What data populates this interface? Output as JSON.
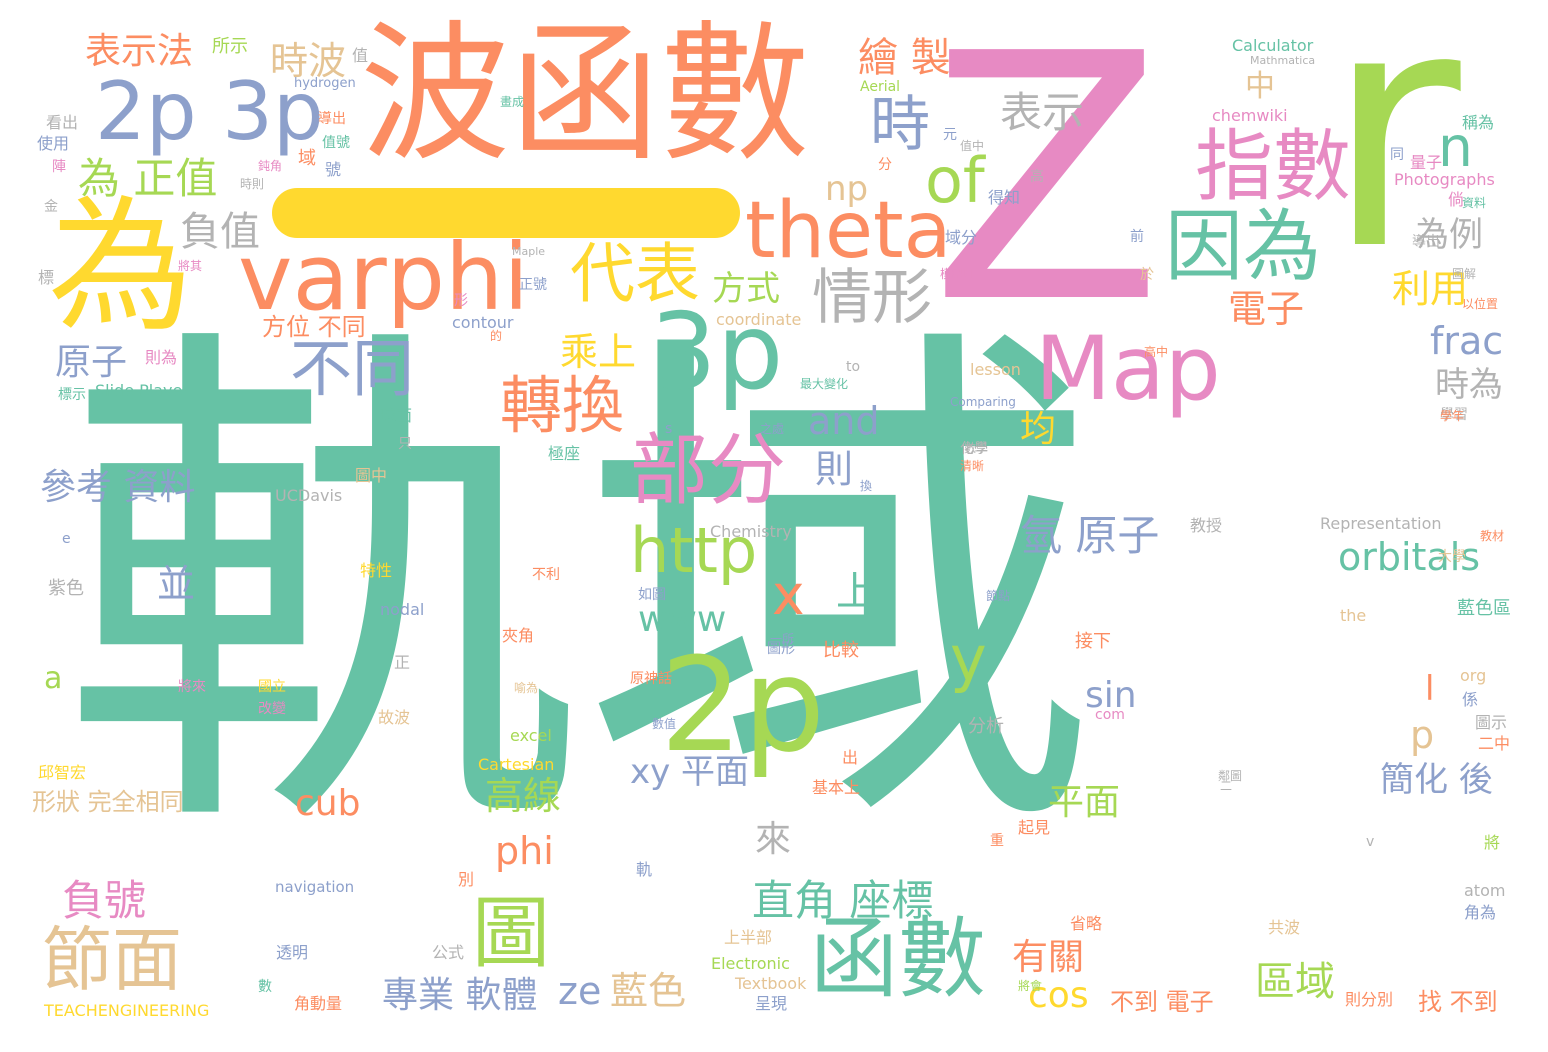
{
  "palette": {
    "green": "#66c2a5",
    "orange": "#fc8d62",
    "blue": "#8da0cb",
    "pink": "#e78ac3",
    "lime": "#a6d854",
    "yellow": "#ffd92f",
    "tan": "#e5c494",
    "gray": "#b3b3b3"
  },
  "bar_color": "#ffd92f",
  "words": [
    {
      "text": "軌域",
      "color": "green"
    },
    {
      "text": "Z",
      "color": "pink"
    },
    {
      "text": "r",
      "color": "lime"
    },
    {
      "text": "波函數",
      "color": "orange"
    },
    {
      "text": "為",
      "color": "yellow"
    },
    {
      "text": "varphi",
      "color": "orange"
    },
    {
      "text": "3p",
      "color": "green"
    },
    {
      "text": "2p",
      "color": "lime"
    },
    {
      "text": "2p 3p",
      "color": "blue"
    },
    {
      "text": "theta",
      "color": "orange"
    },
    {
      "text": "函數",
      "color": "green"
    },
    {
      "text": "Map",
      "color": "pink"
    },
    {
      "text": "指數",
      "color": "pink"
    },
    {
      "text": "因為",
      "color": "green"
    },
    {
      "text": "部分",
      "color": "pink"
    },
    {
      "text": "代表",
      "color": "yellow"
    },
    {
      "text": "of",
      "color": "lime"
    },
    {
      "text": "時",
      "color": "blue"
    },
    {
      "text": "情形",
      "color": "gray"
    },
    {
      "text": "轉換",
      "color": "orange"
    },
    {
      "text": "不同",
      "color": "blue"
    },
    {
      "text": "節面",
      "color": "tan"
    },
    {
      "text": "圖",
      "color": "lime"
    },
    {
      "text": "http",
      "color": "lime"
    },
    {
      "text": "x",
      "color": "orange"
    },
    {
      "text": "y",
      "color": "lime"
    },
    {
      "text": "n",
      "color": "green"
    },
    {
      "text": "為 正值",
      "color": "lime"
    },
    {
      "text": "表示",
      "color": "gray"
    },
    {
      "text": "負值",
      "color": "gray"
    },
    {
      "text": "繪 製",
      "color": "orange"
    },
    {
      "text": "時波",
      "color": "tan"
    },
    {
      "text": "表示法",
      "color": "orange"
    },
    {
      "text": "orbitals",
      "color": "green"
    },
    {
      "text": "直角 座標",
      "color": "green"
    },
    {
      "text": "氫 原子",
      "color": "blue"
    },
    {
      "text": "frac",
      "color": "blue"
    },
    {
      "text": "為例",
      "color": "gray"
    },
    {
      "text": "利用",
      "color": "yellow"
    },
    {
      "text": "電子",
      "color": "orange"
    },
    {
      "text": "時為",
      "color": "gray"
    },
    {
      "text": "and",
      "color": "blue"
    },
    {
      "text": "乘上",
      "color": "yellow"
    },
    {
      "text": "方式",
      "color": "lime"
    },
    {
      "text": "原子",
      "color": "blue"
    },
    {
      "text": "參考 資料",
      "color": "blue"
    },
    {
      "text": "負號",
      "color": "pink"
    },
    {
      "text": "專業 軟體",
      "color": "blue"
    },
    {
      "text": "ze",
      "color": "blue"
    },
    {
      "text": "藍色",
      "color": "tan"
    },
    {
      "text": "區域",
      "color": "lime"
    },
    {
      "text": "有關",
      "color": "orange"
    },
    {
      "text": "cos",
      "color": "yellow"
    },
    {
      "text": "簡化 後",
      "color": "blue"
    },
    {
      "text": "平面",
      "color": "lime"
    },
    {
      "text": "xy 平面",
      "color": "blue"
    },
    {
      "text": "高線",
      "color": "lime"
    },
    {
      "text": "cub",
      "color": "orange"
    },
    {
      "text": "phi",
      "color": "orange"
    },
    {
      "text": "www",
      "color": "green"
    },
    {
      "text": "sin",
      "color": "blue"
    },
    {
      "text": "np",
      "color": "tan"
    },
    {
      "text": "上",
      "color": "green"
    },
    {
      "text": "並",
      "color": "blue"
    },
    {
      "text": "則",
      "color": "blue"
    },
    {
      "text": "均",
      "color": "yellow"
    },
    {
      "text": "來",
      "color": "gray"
    },
    {
      "text": "p",
      "color": "tan"
    },
    {
      "text": "l",
      "color": "orange"
    },
    {
      "text": "a",
      "color": "lime"
    },
    {
      "text": "中",
      "color": "tan"
    },
    {
      "text": "方位 不同",
      "color": "orange"
    },
    {
      "text": "形狀 完全相同",
      "color": "tan"
    },
    {
      "text": "不到 電子",
      "color": "orange"
    },
    {
      "text": "找 不到",
      "color": "orange"
    },
    {
      "text": "Calculator",
      "color": "green"
    },
    {
      "text": "chemwiki",
      "color": "pink"
    },
    {
      "text": "Photographs",
      "color": "pink"
    },
    {
      "text": "hydrogen",
      "color": "blue"
    },
    {
      "text": "Aerial",
      "color": "lime"
    },
    {
      "text": "Mathmatica",
      "color": "gray"
    },
    {
      "text": "Slide Player",
      "color": "green"
    },
    {
      "text": "Comparing",
      "color": "blue"
    },
    {
      "text": "lesson",
      "color": "tan"
    },
    {
      "text": "Representation",
      "color": "gray"
    },
    {
      "text": "Chemistry",
      "color": "gray"
    },
    {
      "text": "UCDavis",
      "color": "gray"
    },
    {
      "text": "contour",
      "color": "blue"
    },
    {
      "text": "coordinate",
      "color": "tan"
    },
    {
      "text": "nodal",
      "color": "blue"
    },
    {
      "text": "the",
      "color": "tan"
    },
    {
      "text": "org",
      "color": "tan"
    },
    {
      "text": "excel",
      "color": "lime"
    },
    {
      "text": "Cartesian",
      "color": "yellow"
    },
    {
      "text": "com",
      "color": "pink"
    },
    {
      "text": "navigation",
      "color": "blue"
    },
    {
      "text": "atom",
      "color": "gray"
    },
    {
      "text": "Electronic",
      "color": "lime"
    },
    {
      "text": "Textbook",
      "color": "tan"
    },
    {
      "text": "TEACHENGINEERING",
      "color": "yellow"
    },
    {
      "text": "所示",
      "color": "lime"
    },
    {
      "text": "看出",
      "color": "gray"
    },
    {
      "text": "使用",
      "color": "blue"
    },
    {
      "text": "球面",
      "color": "green"
    },
    {
      "text": "極座",
      "color": "green"
    },
    {
      "text": "圖中",
      "color": "tan"
    },
    {
      "text": "特性",
      "color": "yellow"
    },
    {
      "text": "夾角",
      "color": "orange"
    },
    {
      "text": "比較",
      "color": "orange"
    },
    {
      "text": "接下",
      "color": "orange"
    },
    {
      "text": "圖形",
      "color": "blue"
    },
    {
      "text": "分析",
      "color": "gray"
    },
    {
      "text": "故波",
      "color": "tan"
    },
    {
      "text": "邱智宏",
      "color": "yellow"
    },
    {
      "text": "基本上",
      "color": "orange"
    },
    {
      "text": "起見",
      "color": "orange"
    },
    {
      "text": "省略",
      "color": "orange"
    },
    {
      "text": "共波",
      "color": "tan"
    },
    {
      "text": "角為",
      "color": "blue"
    },
    {
      "text": "上半部",
      "color": "tan"
    },
    {
      "text": "呈現",
      "color": "blue"
    },
    {
      "text": "公式",
      "color": "gray"
    },
    {
      "text": "透明",
      "color": "blue"
    },
    {
      "text": "角動量",
      "color": "orange"
    },
    {
      "text": "則分別",
      "color": "orange"
    },
    {
      "text": "教授",
      "color": "gray"
    },
    {
      "text": "藍色區",
      "color": "green"
    },
    {
      "text": "紫色",
      "color": "gray"
    },
    {
      "text": "量子",
      "color": "pink"
    },
    {
      "text": "高中",
      "color": "orange"
    },
    {
      "text": "得知",
      "color": "blue"
    },
    {
      "text": "域分",
      "color": "blue"
    },
    {
      "text": "元",
      "color": "blue"
    },
    {
      "text": "分",
      "color": "orange"
    },
    {
      "text": "前",
      "color": "blue"
    },
    {
      "text": "於",
      "color": "tan"
    },
    {
      "text": "正號",
      "color": "blue"
    },
    {
      "text": "則為",
      "color": "pink"
    },
    {
      "text": "標示",
      "color": "green"
    },
    {
      "text": "陣",
      "color": "pink"
    },
    {
      "text": "稱為",
      "color": "green"
    },
    {
      "text": "二中",
      "color": "orange"
    },
    {
      "text": "圖示",
      "color": "gray"
    },
    {
      "text": "化學",
      "color": "gray"
    },
    {
      "text": "不利",
      "color": "orange"
    },
    {
      "text": "如圖",
      "color": "blue"
    },
    {
      "text": "正",
      "color": "gray"
    },
    {
      "text": "別",
      "color": "orange"
    },
    {
      "text": "軌",
      "color": "blue"
    },
    {
      "text": "出",
      "color": "orange"
    },
    {
      "text": "高",
      "color": "gray"
    },
    {
      "text": "同",
      "color": "blue"
    },
    {
      "text": "e",
      "color": "blue"
    },
    {
      "text": "s",
      "color": "blue"
    },
    {
      "text": "v",
      "color": "gray"
    },
    {
      "text": "to",
      "color": "gray"
    },
    {
      "text": "最大變化",
      "color": "green"
    },
    {
      "text": "之處",
      "color": "blue"
    },
    {
      "text": "一所",
      "color": "blue"
    },
    {
      "text": "原神話",
      "color": "orange"
    },
    {
      "text": "資料",
      "color": "green"
    },
    {
      "text": "以位置",
      "color": "orange"
    },
    {
      "text": "Maple",
      "color": "gray"
    },
    {
      "text": "導出",
      "color": "gray"
    },
    {
      "text": "學習",
      "color": "gray"
    },
    {
      "text": "大學",
      "color": "tan"
    },
    {
      "text": "數",
      "color": "green"
    },
    {
      "text": "域",
      "color": "orange"
    },
    {
      "text": "值",
      "color": "gray"
    },
    {
      "text": "號",
      "color": "blue"
    },
    {
      "text": "形",
      "color": "pink"
    },
    {
      "text": "的",
      "color": "orange"
    },
    {
      "text": "國立",
      "color": "yellow"
    },
    {
      "text": "鈍角",
      "color": "pink"
    },
    {
      "text": "將其",
      "color": "pink"
    },
    {
      "text": "標",
      "color": "gray"
    },
    {
      "text": "倘",
      "color": "pink"
    },
    {
      "text": "係",
      "color": "blue"
    },
    {
      "text": "將",
      "color": "lime"
    },
    {
      "text": "學年",
      "color": "orange"
    },
    {
      "text": "教材",
      "color": "orange"
    },
    {
      "text": "重",
      "color": "orange"
    },
    {
      "text": "換",
      "color": "blue"
    },
    {
      "text": "只",
      "color": "gray"
    },
    {
      "text": "值號",
      "color": "green"
    },
    {
      "text": "改變",
      "color": "pink"
    },
    {
      "text": "值中",
      "color": "gray"
    },
    {
      "text": "將來",
      "color": "pink"
    },
    {
      "text": "畫成",
      "color": "green"
    },
    {
      "text": "清晰",
      "color": "orange"
    },
    {
      "text": "將會",
      "color": "lime"
    },
    {
      "text": "節點",
      "color": "blue"
    },
    {
      "text": "導出",
      "color": "orange"
    },
    {
      "text": "說明",
      "color": "pink"
    },
    {
      "text": "數值",
      "color": "blue"
    },
    {
      "text": "鄰圖",
      "color": "gray"
    },
    {
      "text": "喻為",
      "color": "tan"
    },
    {
      "text": "金",
      "color": "gray"
    },
    {
      "text": "模型",
      "color": "pink"
    },
    {
      "text": "圖解",
      "color": "gray"
    },
    {
      "text": "數學",
      "color": "gray"
    },
    {
      "text": "時則",
      "color": "gray"
    },
    {
      "text": "二",
      "color": "gray"
    }
  ]
}
